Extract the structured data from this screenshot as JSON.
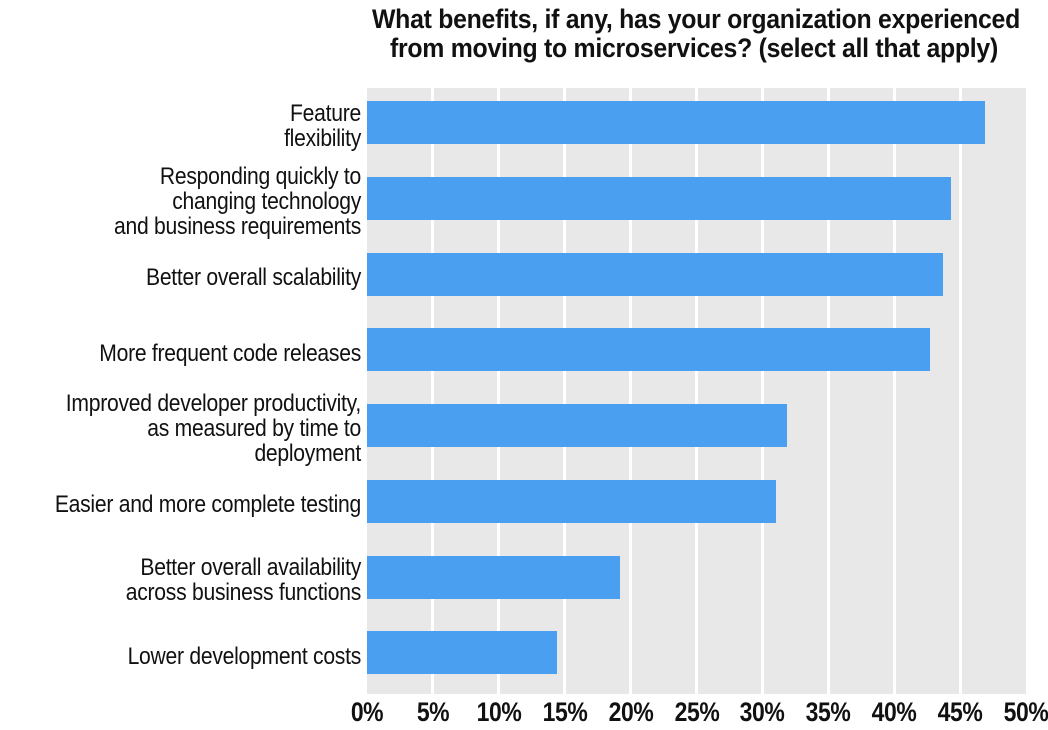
{
  "chart_data": {
    "type": "bar",
    "orientation": "horizontal",
    "title": "What benefits, if any, has your organization experienced from moving to microservices? (select all that apply)",
    "categories": [
      "Feature flexibility",
      "Responding quickly to changing technology and business requirements",
      "Better overall scalability",
      "More frequent code releases",
      "Improved developer productivity, as measured by time to deployment",
      "Easier and more complete testing",
      "Better overall availability across business functions",
      "Lower development costs"
    ],
    "values": [
      46.9,
      44.3,
      43.7,
      42.7,
      31.9,
      31.0,
      19.2,
      14.4
    ],
    "unit": "%",
    "xlabel": "",
    "ylabel": "",
    "xlim": [
      0,
      50
    ],
    "xticks": [
      0,
      5,
      10,
      15,
      20,
      25,
      30,
      35,
      40,
      45,
      50
    ],
    "xtick_labels": [
      "0%",
      "5%",
      "10%",
      "15%",
      "20%",
      "25%",
      "30%",
      "35%",
      "40%",
      "45%",
      "50%"
    ],
    "grid": "vertical",
    "legend": false,
    "colors": {
      "bar": "#4a9ff0",
      "plot_background": "#e8e8e8",
      "gridline": "#ffffff",
      "text": "#111111",
      "page_background": "#ffffff"
    }
  },
  "display": {
    "title_lines": [
      "What benefits, if any, has your organization experienced",
      "from moving to microservices? (select all that apply)"
    ],
    "category_lines": [
      [
        "Feature",
        "flexibility"
      ],
      [
        "Responding quickly to",
        "changing technology",
        "and business requirements"
      ],
      [
        "Better overall scalability"
      ],
      [
        "More frequent code releases"
      ],
      [
        "Improved developer productivity,",
        "as measured by time to deployment"
      ],
      [
        "Easier and more complete testing"
      ],
      [
        "Better overall availability",
        "across business functions"
      ],
      [
        "Lower development costs"
      ]
    ]
  }
}
